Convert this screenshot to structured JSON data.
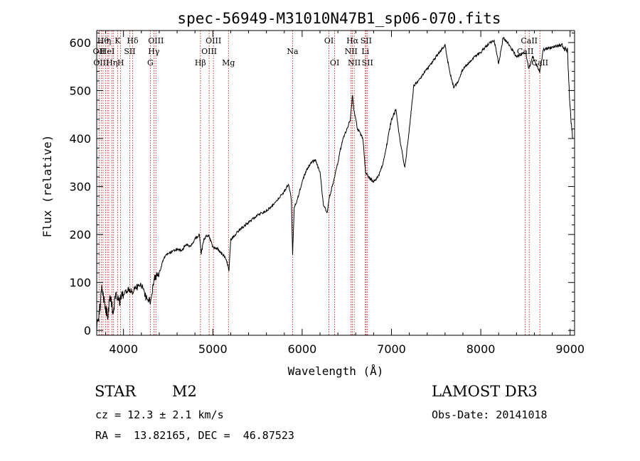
{
  "chart_data": {
    "type": "line",
    "title": "spec-56949-M31010N47B1_sp06-070.fits",
    "xlabel": "Wavelength (Å)",
    "ylabel": "Flux (relative)",
    "xlim": [
      3700,
      9050
    ],
    "ylim": [
      -10,
      625
    ],
    "x_ticks": [
      4000,
      5000,
      6000,
      7000,
      8000,
      9000
    ],
    "y_ticks": [
      0,
      100,
      200,
      300,
      400,
      500,
      600
    ],
    "spectrum_anchors": [
      [
        3700,
        0
      ],
      [
        3730,
        40
      ],
      [
        3760,
        90
      ],
      [
        3790,
        60
      ],
      [
        3820,
        30
      ],
      [
        3850,
        70
      ],
      [
        3880,
        40
      ],
      [
        3920,
        80
      ],
      [
        3960,
        60
      ],
      [
        4000,
        75
      ],
      [
        4050,
        85
      ],
      [
        4100,
        80
      ],
      [
        4150,
        90
      ],
      [
        4200,
        95
      ],
      [
        4250,
        70
      ],
      [
        4300,
        60
      ],
      [
        4350,
        110
      ],
      [
        4400,
        120
      ],
      [
        4450,
        150
      ],
      [
        4500,
        160
      ],
      [
        4550,
        165
      ],
      [
        4600,
        170
      ],
      [
        4650,
        165
      ],
      [
        4700,
        180
      ],
      [
        4750,
        175
      ],
      [
        4800,
        190
      ],
      [
        4850,
        200
      ],
      [
        4870,
        160
      ],
      [
        4900,
        190
      ],
      [
        4950,
        200
      ],
      [
        5000,
        175
      ],
      [
        5050,
        170
      ],
      [
        5100,
        160
      ],
      [
        5150,
        150
      ],
      [
        5180,
        125
      ],
      [
        5200,
        190
      ],
      [
        5300,
        210
      ],
      [
        5400,
        225
      ],
      [
        5500,
        240
      ],
      [
        5600,
        250
      ],
      [
        5700,
        265
      ],
      [
        5800,
        290
      ],
      [
        5850,
        305
      ],
      [
        5880,
        270
      ],
      [
        5893,
        155
      ],
      [
        5910,
        255
      ],
      [
        5950,
        275
      ],
      [
        6000,
        310
      ],
      [
        6050,
        335
      ],
      [
        6100,
        350
      ],
      [
        6150,
        355
      ],
      [
        6200,
        330
      ],
      [
        6240,
        260
      ],
      [
        6280,
        245
      ],
      [
        6300,
        275
      ],
      [
        6350,
        310
      ],
      [
        6400,
        350
      ],
      [
        6450,
        395
      ],
      [
        6500,
        420
      ],
      [
        6540,
        440
      ],
      [
        6563,
        490
      ],
      [
        6580,
        460
      ],
      [
        6620,
        420
      ],
      [
        6680,
        400
      ],
      [
        6710,
        330
      ],
      [
        6740,
        320
      ],
      [
        6800,
        310
      ],
      [
        6850,
        320
      ],
      [
        6900,
        345
      ],
      [
        6950,
        390
      ],
      [
        7000,
        440
      ],
      [
        7050,
        460
      ],
      [
        7100,
        390
      ],
      [
        7150,
        340
      ],
      [
        7200,
        420
      ],
      [
        7250,
        510
      ],
      [
        7300,
        520
      ],
      [
        7400,
        545
      ],
      [
        7500,
        570
      ],
      [
        7600,
        595
      ],
      [
        7650,
        540
      ],
      [
        7700,
        505
      ],
      [
        7750,
        520
      ],
      [
        7800,
        545
      ],
      [
        7900,
        565
      ],
      [
        8000,
        580
      ],
      [
        8100,
        600
      ],
      [
        8150,
        605
      ],
      [
        8200,
        555
      ],
      [
        8250,
        610
      ],
      [
        8300,
        600
      ],
      [
        8400,
        570
      ],
      [
        8500,
        580
      ],
      [
        8540,
        545
      ],
      [
        8580,
        570
      ],
      [
        8620,
        555
      ],
      [
        8660,
        540
      ],
      [
        8700,
        585
      ],
      [
        8800,
        590
      ],
      [
        8900,
        595
      ],
      [
        8970,
        585
      ],
      [
        9000,
        460
      ],
      [
        9030,
        400
      ]
    ],
    "spectral_lines": [
      {
        "wavelength": 3727,
        "row": 1,
        "label": "OII"
      },
      {
        "wavelength": 3750,
        "row": 2,
        "label": "OIII"
      },
      {
        "wavelength": 3771,
        "row": 0,
        "label": "Hθ"
      },
      {
        "wavelength": 3798,
        "row": 0,
        "label": ""
      },
      {
        "wavelength": 3820,
        "row": 1,
        "label": "HeI"
      },
      {
        "wavelength": 3835,
        "row": 0,
        "label": "η"
      },
      {
        "wavelength": 3869,
        "row": 2,
        "label": "Hη"
      },
      {
        "wavelength": 3889,
        "row": 1,
        "label": ""
      },
      {
        "wavelength": 3934,
        "row": 0,
        "label": "K"
      },
      {
        "wavelength": 3968,
        "row": 2,
        "label": "H"
      },
      {
        "wavelength": 4070,
        "row": 1,
        "label": "SII"
      },
      {
        "wavelength": 4102,
        "row": 0,
        "label": "Hδ"
      },
      {
        "wavelength": 4300,
        "row": 2,
        "label": "G"
      },
      {
        "wavelength": 4340,
        "row": 1,
        "label": "Hγ"
      },
      {
        "wavelength": 4363,
        "row": 0,
        "label": "OIII"
      },
      {
        "wavelength": 4861,
        "row": 2,
        "label": "Hβ"
      },
      {
        "wavelength": 4959,
        "row": 1,
        "label": "OIII"
      },
      {
        "wavelength": 5007,
        "row": 0,
        "label": "OIII"
      },
      {
        "wavelength": 5175,
        "row": 2,
        "label": "Mg"
      },
      {
        "wavelength": 5893,
        "row": 1,
        "label": "Na"
      },
      {
        "wavelength": 6300,
        "row": 0,
        "label": "OI"
      },
      {
        "wavelength": 6364,
        "row": 2,
        "label": "OI"
      },
      {
        "wavelength": 6548,
        "row": 1,
        "label": "NII"
      },
      {
        "wavelength": 6563,
        "row": 0,
        "label": "Hα"
      },
      {
        "wavelength": 6583,
        "row": 2,
        "label": "NII"
      },
      {
        "wavelength": 6708,
        "row": 1,
        "label": "Li"
      },
      {
        "wavelength": 6716,
        "row": 0,
        "label": "SII"
      },
      {
        "wavelength": 6731,
        "row": 2,
        "label": "SII"
      },
      {
        "wavelength": 8498,
        "row": 1,
        "label": "CaII"
      },
      {
        "wavelength": 8542,
        "row": 0,
        "label": "CaII"
      },
      {
        "wavelength": 8662,
        "row": 2,
        "label": "CaII"
      }
    ],
    "line_color": "#000000",
    "marker_line_color": "#cc0000"
  },
  "info": {
    "object_class": "STAR",
    "subclass": "M2",
    "survey": "LAMOST DR3",
    "cz": "cz = 12.3 ± 2.1 km/s",
    "obs_date": "Obs-Date: 20141018",
    "coords": "RA =  13.82165, DEC =  46.87523"
  }
}
